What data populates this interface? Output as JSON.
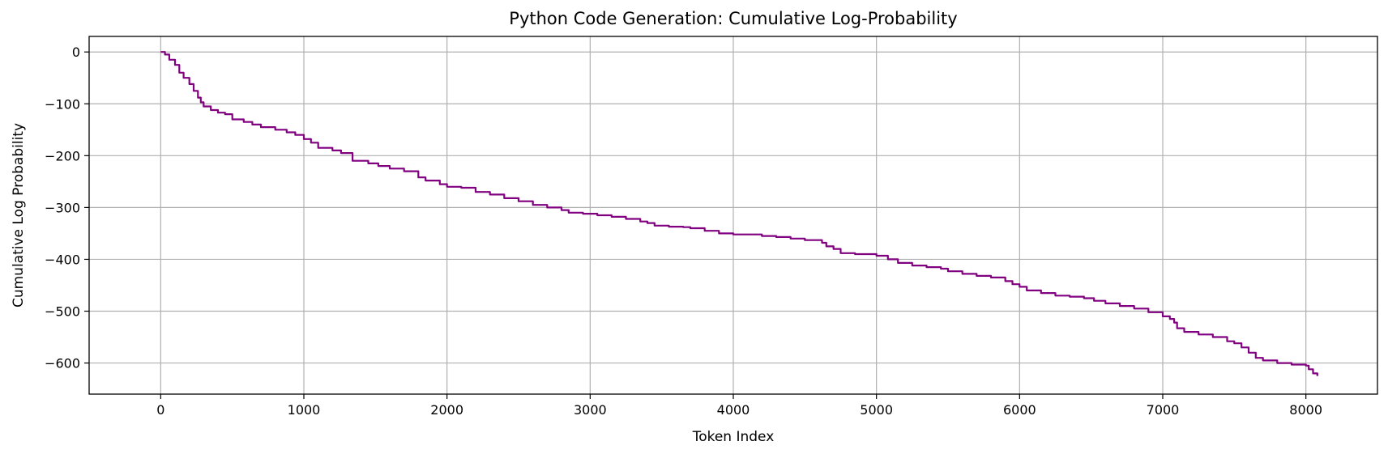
{
  "chart_data": {
    "type": "line",
    "title": "Python Code Generation: Cumulative Log-Probability",
    "xlabel": "Token Index",
    "ylabel": "Cumulative Log Probability",
    "xlim": [
      -500,
      8500
    ],
    "ylim": [
      -660,
      30
    ],
    "x_ticks": [
      0,
      1000,
      2000,
      3000,
      4000,
      5000,
      6000,
      7000,
      8000
    ],
    "y_ticks": [
      0,
      -100,
      -200,
      -300,
      -400,
      -500,
      -600
    ],
    "x_tick_labels": [
      "0",
      "1000",
      "2000",
      "3000",
      "4000",
      "5000",
      "6000",
      "7000",
      "8000"
    ],
    "y_tick_labels": [
      "0",
      "−100",
      "−200",
      "−300",
      "−400",
      "−500",
      "−600"
    ],
    "grid": true,
    "line_color": "#800080",
    "series": [
      {
        "x": [
          0,
          30,
          60,
          100,
          130,
          160,
          200,
          230,
          260,
          280,
          300,
          350,
          400,
          450,
          500,
          580,
          640,
          700,
          800,
          880,
          940,
          1000,
          1050,
          1100,
          1200,
          1260,
          1340,
          1450,
          1520,
          1600,
          1700,
          1800,
          1850,
          1950,
          2000,
          2100,
          2200,
          2300,
          2400,
          2500,
          2600,
          2700,
          2800,
          2850,
          2950,
          3050,
          3150,
          3250,
          3350,
          3400,
          3450,
          3550,
          3650,
          3700,
          3800,
          3900,
          4000,
          4200,
          4300,
          4400,
          4500,
          4620,
          4650,
          4700,
          4750,
          4850,
          4950,
          5000,
          5080,
          5150,
          5250,
          5350,
          5450,
          5500,
          5600,
          5700,
          5800,
          5900,
          5950,
          6000,
          6050,
          6150,
          6250,
          6350,
          6450,
          6520,
          6600,
          6700,
          6800,
          6900,
          7000,
          7050,
          7080,
          7100,
          7150,
          7250,
          7350,
          7450,
          7500,
          7550,
          7600,
          7650,
          7700,
          7800,
          7900,
          8000,
          8020,
          8050,
          8080
        ],
        "y": [
          0,
          -5,
          -15,
          -25,
          -40,
          -50,
          -62,
          -75,
          -88,
          -97,
          -105,
          -112,
          -117,
          -120,
          -130,
          -135,
          -140,
          -145,
          -150,
          -155,
          -160,
          -168,
          -175,
          -185,
          -190,
          -195,
          -210,
          -215,
          -220,
          -225,
          -230,
          -242,
          -248,
          -255,
          -260,
          -262,
          -270,
          -275,
          -282,
          -288,
          -295,
          -300,
          -305,
          -310,
          -312,
          -315,
          -318,
          -322,
          -327,
          -330,
          -335,
          -337,
          -338,
          -340,
          -345,
          -350,
          -352,
          -355,
          -357,
          -360,
          -363,
          -368,
          -375,
          -380,
          -388,
          -390,
          -390,
          -393,
          -400,
          -407,
          -412,
          -415,
          -418,
          -423,
          -428,
          -432,
          -435,
          -442,
          -448,
          -453,
          -460,
          -465,
          -470,
          -472,
          -475,
          -480,
          -485,
          -490,
          -495,
          -502,
          -510,
          -515,
          -522,
          -533,
          -540,
          -545,
          -550,
          -558,
          -562,
          -570,
          -580,
          -590,
          -595,
          -600,
          -603,
          -605,
          -612,
          -620,
          -625
        ]
      }
    ]
  }
}
